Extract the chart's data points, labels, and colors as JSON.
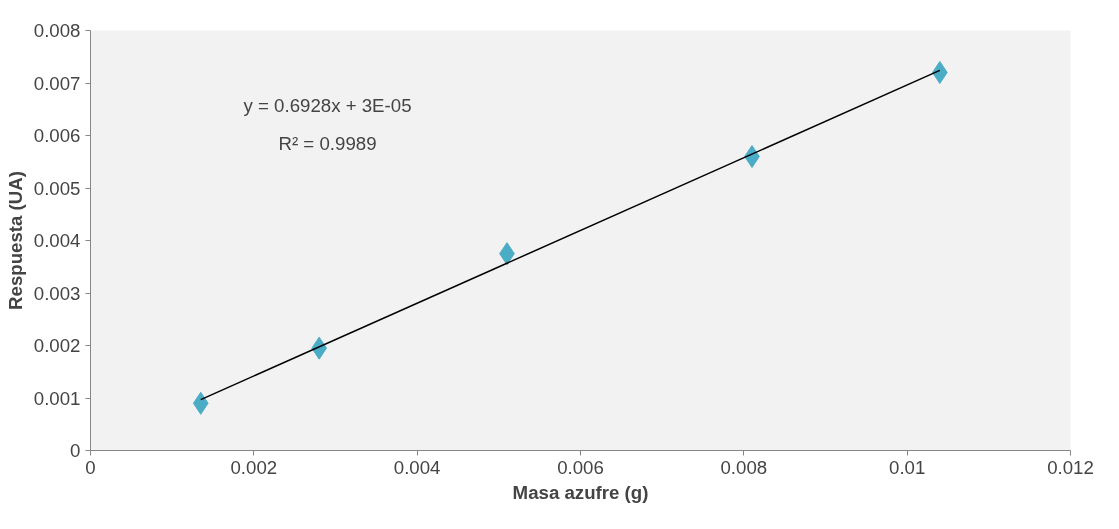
{
  "chart_data": {
    "type": "scatter",
    "xlabel": "Masa azufre (g)",
    "ylabel": "Respuesta (UA)",
    "xlim": [
      0,
      0.012
    ],
    "ylim": [
      0,
      0.008
    ],
    "xticks": [
      0,
      0.002,
      0.004,
      0.006,
      0.008,
      0.01,
      0.012
    ],
    "yticks": [
      0,
      0.001,
      0.002,
      0.003,
      0.004,
      0.005,
      0.006,
      0.007,
      0.008
    ],
    "grid": false,
    "series": [
      {
        "color": "#4bacc6",
        "marker": "diamond",
        "x": [
          0.00135,
          0.0028,
          0.0051,
          0.0081,
          0.0104
        ],
        "values": [
          0.0009,
          0.00195,
          0.00375,
          0.0056,
          0.0072
        ]
      },
      {
        "type": "line",
        "marker": "none",
        "color": "#000000",
        "x": [
          0.00135,
          0.0104
        ],
        "values": [
          0.00097,
          0.00724
        ]
      }
    ],
    "annotations": [
      "y = 0.6928x + 3E-05",
      "R² = 0.9989"
    ]
  }
}
